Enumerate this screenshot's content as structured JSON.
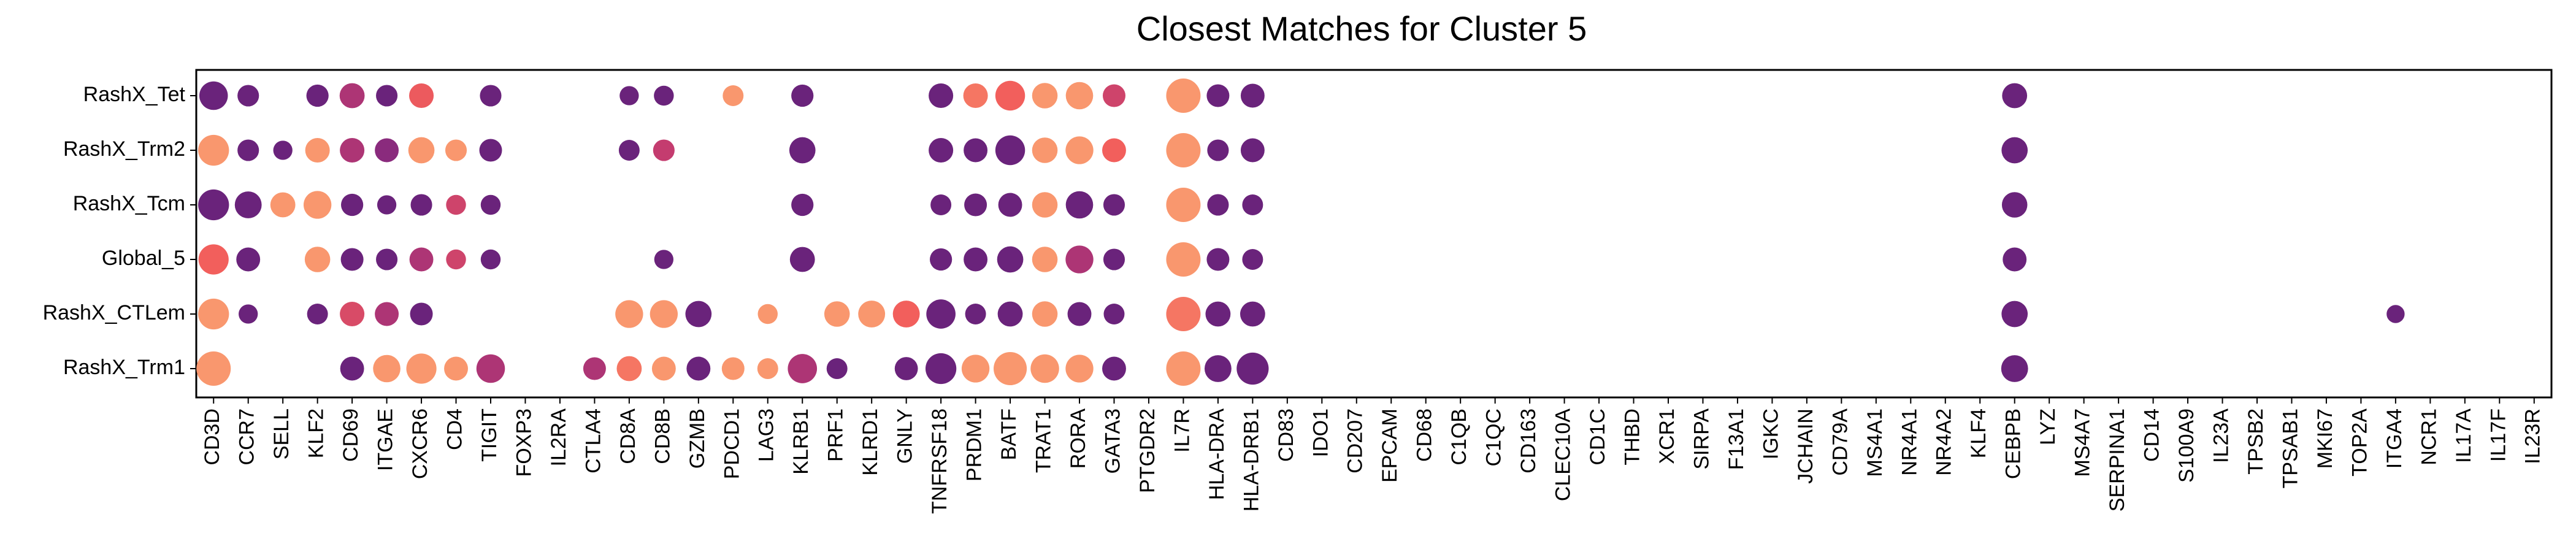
{
  "chart_data": {
    "type": "scatter",
    "title": "Closest Matches for Cluster 5",
    "xlabel": "",
    "ylabel": "",
    "grid": false,
    "colors": {
      "low": "#5a1f7a",
      "mid_low": "#8a2b7d",
      "mid": "#c43c6f",
      "high": "#f25f5c",
      "top": "#fba773"
    },
    "rows": [
      "RashX_Tet",
      "RashX_Trm2",
      "RashX_Tcm",
      "Global_5",
      "RashX_CTLem",
      "RashX_Trm1"
    ],
    "genes": [
      "CD3D",
      "CCR7",
      "SELL",
      "KLF2",
      "CD69",
      "ITGAE",
      "CXCR6",
      "CD4",
      "TIGIT",
      "FOXP3",
      "IL2RA",
      "CTLA4",
      "CD8A",
      "CD8B",
      "GZMB",
      "PDCD1",
      "LAG3",
      "KLRB1",
      "PRF1",
      "KLRD1",
      "GNLY",
      "TNFRSF18",
      "PRDM1",
      "BATF",
      "TRAT1",
      "RORA",
      "GATA3",
      "PTGDR2",
      "IL7R",
      "HLA-DRA",
      "HLA-DRB1",
      "CD83",
      "IDO1",
      "CD207",
      "EPCAM",
      "CD68",
      "C1QB",
      "C1QC",
      "CD163",
      "CLEC10A",
      "CD1C",
      "THBD",
      "XCR1",
      "SIRPA",
      "F13A1",
      "IGKC",
      "JCHAIN",
      "CD79A",
      "MS4A1",
      "NR4A1",
      "NR4A2",
      "KLF4",
      "CEBPB",
      "LYZ",
      "MS4A7",
      "SERPINA1",
      "CD14",
      "S100A9",
      "IL23A",
      "TPSB2",
      "TPSAB1",
      "MKI67",
      "TOP2A",
      "ITGA4",
      "NCR1",
      "IL17A",
      "IL17F",
      "IL23R"
    ],
    "points": [
      {
        "row": "RashX_Tet",
        "gene": "CD3D",
        "size": 0.75,
        "color": 0.1
      },
      {
        "row": "RashX_Tet",
        "gene": "CCR7",
        "size": 0.45,
        "color": 0.1
      },
      {
        "row": "RashX_Tet",
        "gene": "KLF2",
        "size": 0.48,
        "color": 0.1
      },
      {
        "row": "RashX_Tet",
        "gene": "CD69",
        "size": 0.6,
        "color": 0.45
      },
      {
        "row": "RashX_Tet",
        "gene": "ITGAE",
        "size": 0.45,
        "color": 0.1
      },
      {
        "row": "RashX_Tet",
        "gene": "CXCR6",
        "size": 0.58,
        "color": 0.75
      },
      {
        "row": "RashX_Tet",
        "gene": "TIGIT",
        "size": 0.45,
        "color": 0.1
      },
      {
        "row": "RashX_Tet",
        "gene": "CD8A",
        "size": 0.35,
        "color": 0.1
      },
      {
        "row": "RashX_Tet",
        "gene": "CD8B",
        "size": 0.38,
        "color": 0.1
      },
      {
        "row": "RashX_Tet",
        "gene": "PDCD1",
        "size": 0.42,
        "color": 0.95
      },
      {
        "row": "RashX_Tet",
        "gene": "KLRB1",
        "size": 0.48,
        "color": 0.1
      },
      {
        "row": "RashX_Tet",
        "gene": "TNFRSF18",
        "size": 0.58,
        "color": 0.1
      },
      {
        "row": "RashX_Tet",
        "gene": "PRDM1",
        "size": 0.58,
        "color": 0.85
      },
      {
        "row": "RashX_Tet",
        "gene": "BATF",
        "size": 0.8,
        "color": 0.78
      },
      {
        "row": "RashX_Tet",
        "gene": "TRAT1",
        "size": 0.62,
        "color": 0.95
      },
      {
        "row": "RashX_Tet",
        "gene": "RORA",
        "size": 0.7,
        "color": 0.95
      },
      {
        "row": "RashX_Tet",
        "gene": "GATA3",
        "size": 0.5,
        "color": 0.6
      },
      {
        "row": "RashX_Tet",
        "gene": "IL7R",
        "size": 1.0,
        "color": 0.95
      },
      {
        "row": "RashX_Tet",
        "gene": "HLA-DRA",
        "size": 0.5,
        "color": 0.1
      },
      {
        "row": "RashX_Tet",
        "gene": "HLA-DRB1",
        "size": 0.55,
        "color": 0.1
      },
      {
        "row": "RashX_Tet",
        "gene": "CEBPB",
        "size": 0.6,
        "color": 0.1
      },
      {
        "row": "RashX_Trm2",
        "gene": "CD3D",
        "size": 0.85,
        "color": 0.95
      },
      {
        "row": "RashX_Trm2",
        "gene": "CCR7",
        "size": 0.45,
        "color": 0.1
      },
      {
        "row": "RashX_Trm2",
        "gene": "SELL",
        "size": 0.35,
        "color": 0.1
      },
      {
        "row": "RashX_Trm2",
        "gene": "KLF2",
        "size": 0.58,
        "color": 0.95
      },
      {
        "row": "RashX_Trm2",
        "gene": "CD69",
        "size": 0.58,
        "color": 0.45
      },
      {
        "row": "RashX_Trm2",
        "gene": "ITGAE",
        "size": 0.55,
        "color": 0.3
      },
      {
        "row": "RashX_Trm2",
        "gene": "CXCR6",
        "size": 0.65,
        "color": 0.95
      },
      {
        "row": "RashX_Trm2",
        "gene": "CD4",
        "size": 0.45,
        "color": 0.95
      },
      {
        "row": "RashX_Trm2",
        "gene": "TIGIT",
        "size": 0.5,
        "color": 0.1
      },
      {
        "row": "RashX_Trm2",
        "gene": "CD8A",
        "size": 0.42,
        "color": 0.1
      },
      {
        "row": "RashX_Trm2",
        "gene": "CD8B",
        "size": 0.45,
        "color": 0.55
      },
      {
        "row": "RashX_Trm2",
        "gene": "KLRB1",
        "size": 0.65,
        "color": 0.1
      },
      {
        "row": "RashX_Trm2",
        "gene": "TNFRSF18",
        "size": 0.58,
        "color": 0.1
      },
      {
        "row": "RashX_Trm2",
        "gene": "PRDM1",
        "size": 0.55,
        "color": 0.1
      },
      {
        "row": "RashX_Trm2",
        "gene": "BATF",
        "size": 0.8,
        "color": 0.1
      },
      {
        "row": "RashX_Trm2",
        "gene": "TRAT1",
        "size": 0.62,
        "color": 0.95
      },
      {
        "row": "RashX_Trm2",
        "gene": "RORA",
        "size": 0.72,
        "color": 0.95
      },
      {
        "row": "RashX_Trm2",
        "gene": "GATA3",
        "size": 0.55,
        "color": 0.78
      },
      {
        "row": "RashX_Trm2",
        "gene": "IL7R",
        "size": 1.0,
        "color": 0.95
      },
      {
        "row": "RashX_Trm2",
        "gene": "HLA-DRA",
        "size": 0.45,
        "color": 0.1
      },
      {
        "row": "RashX_Trm2",
        "gene": "HLA-DRB1",
        "size": 0.55,
        "color": 0.1
      },
      {
        "row": "RashX_Trm2",
        "gene": "CEBPB",
        "size": 0.65,
        "color": 0.1
      },
      {
        "row": "RashX_Tcm",
        "gene": "CD3D",
        "size": 0.85,
        "color": 0.1
      },
      {
        "row": "RashX_Tcm",
        "gene": "CCR7",
        "size": 0.68,
        "color": 0.1
      },
      {
        "row": "RashX_Tcm",
        "gene": "SELL",
        "size": 0.6,
        "color": 0.95
      },
      {
        "row": "RashX_Tcm",
        "gene": "KLF2",
        "size": 0.72,
        "color": 0.95
      },
      {
        "row": "RashX_Tcm",
        "gene": "CD69",
        "size": 0.48,
        "color": 0.1
      },
      {
        "row": "RashX_Tcm",
        "gene": "ITGAE",
        "size": 0.35,
        "color": 0.1
      },
      {
        "row": "RashX_Tcm",
        "gene": "CXCR6",
        "size": 0.45,
        "color": 0.1
      },
      {
        "row": "RashX_Tcm",
        "gene": "CD4",
        "size": 0.38,
        "color": 0.6
      },
      {
        "row": "RashX_Tcm",
        "gene": "TIGIT",
        "size": 0.38,
        "color": 0.1
      },
      {
        "row": "RashX_Tcm",
        "gene": "KLRB1",
        "size": 0.48,
        "color": 0.1
      },
      {
        "row": "RashX_Tcm",
        "gene": "TNFRSF18",
        "size": 0.42,
        "color": 0.1
      },
      {
        "row": "RashX_Tcm",
        "gene": "PRDM1",
        "size": 0.5,
        "color": 0.1
      },
      {
        "row": "RashX_Tcm",
        "gene": "BATF",
        "size": 0.55,
        "color": 0.1
      },
      {
        "row": "RashX_Tcm",
        "gene": "TRAT1",
        "size": 0.62,
        "color": 0.95
      },
      {
        "row": "RashX_Tcm",
        "gene": "RORA",
        "size": 0.7,
        "color": 0.1
      },
      {
        "row": "RashX_Tcm",
        "gene": "GATA3",
        "size": 0.45,
        "color": 0.1
      },
      {
        "row": "RashX_Tcm",
        "gene": "IL7R",
        "size": 1.0,
        "color": 0.95
      },
      {
        "row": "RashX_Tcm",
        "gene": "HLA-DRA",
        "size": 0.45,
        "color": 0.1
      },
      {
        "row": "RashX_Tcm",
        "gene": "HLA-DRB1",
        "size": 0.42,
        "color": 0.1
      },
      {
        "row": "RashX_Tcm",
        "gene": "CEBPB",
        "size": 0.62,
        "color": 0.1
      },
      {
        "row": "Global_5",
        "gene": "CD3D",
        "size": 0.82,
        "color": 0.78
      },
      {
        "row": "Global_5",
        "gene": "CCR7",
        "size": 0.55,
        "color": 0.1
      },
      {
        "row": "Global_5",
        "gene": "KLF2",
        "size": 0.62,
        "color": 0.95
      },
      {
        "row": "Global_5",
        "gene": "CD69",
        "size": 0.5,
        "color": 0.1
      },
      {
        "row": "Global_5",
        "gene": "ITGAE",
        "size": 0.45,
        "color": 0.1
      },
      {
        "row": "Global_5",
        "gene": "CXCR6",
        "size": 0.55,
        "color": 0.45
      },
      {
        "row": "Global_5",
        "gene": "CD4",
        "size": 0.38,
        "color": 0.6
      },
      {
        "row": "Global_5",
        "gene": "TIGIT",
        "size": 0.38,
        "color": 0.1
      },
      {
        "row": "Global_5",
        "gene": "CD8B",
        "size": 0.35,
        "color": 0.1
      },
      {
        "row": "Global_5",
        "gene": "KLRB1",
        "size": 0.6,
        "color": 0.1
      },
      {
        "row": "Global_5",
        "gene": "TNFRSF18",
        "size": 0.48,
        "color": 0.1
      },
      {
        "row": "Global_5",
        "gene": "PRDM1",
        "size": 0.55,
        "color": 0.1
      },
      {
        "row": "Global_5",
        "gene": "BATF",
        "size": 0.65,
        "color": 0.1
      },
      {
        "row": "Global_5",
        "gene": "TRAT1",
        "size": 0.62,
        "color": 0.95
      },
      {
        "row": "Global_5",
        "gene": "RORA",
        "size": 0.72,
        "color": 0.45
      },
      {
        "row": "Global_5",
        "gene": "GATA3",
        "size": 0.45,
        "color": 0.1
      },
      {
        "row": "Global_5",
        "gene": "IL7R",
        "size": 1.0,
        "color": 0.95
      },
      {
        "row": "Global_5",
        "gene": "HLA-DRA",
        "size": 0.5,
        "color": 0.1
      },
      {
        "row": "Global_5",
        "gene": "HLA-DRB1",
        "size": 0.42,
        "color": 0.1
      },
      {
        "row": "Global_5",
        "gene": "CEBPB",
        "size": 0.55,
        "color": 0.1
      },
      {
        "row": "RashX_CTLem",
        "gene": "CD3D",
        "size": 0.85,
        "color": 0.95
      },
      {
        "row": "RashX_CTLem",
        "gene": "CCR7",
        "size": 0.35,
        "color": 0.1
      },
      {
        "row": "RashX_CTLem",
        "gene": "KLF2",
        "size": 0.42,
        "color": 0.1
      },
      {
        "row": "RashX_CTLem",
        "gene": "CD69",
        "size": 0.58,
        "color": 0.65
      },
      {
        "row": "RashX_CTLem",
        "gene": "ITGAE",
        "size": 0.55,
        "color": 0.45
      },
      {
        "row": "RashX_CTLem",
        "gene": "CXCR6",
        "size": 0.5,
        "color": 0.1
      },
      {
        "row": "RashX_CTLem",
        "gene": "CD8A",
        "size": 0.72,
        "color": 0.95
      },
      {
        "row": "RashX_CTLem",
        "gene": "CD8B",
        "size": 0.72,
        "color": 0.95
      },
      {
        "row": "RashX_CTLem",
        "gene": "GZMB",
        "size": 0.65,
        "color": 0.1
      },
      {
        "row": "RashX_CTLem",
        "gene": "LAG3",
        "size": 0.38,
        "color": 0.95
      },
      {
        "row": "RashX_CTLem",
        "gene": "PRF1",
        "size": 0.62,
        "color": 0.95
      },
      {
        "row": "RashX_CTLem",
        "gene": "KLRD1",
        "size": 0.68,
        "color": 0.95
      },
      {
        "row": "RashX_CTLem",
        "gene": "GNLY",
        "size": 0.68,
        "color": 0.78
      },
      {
        "row": "RashX_CTLem",
        "gene": "TNFRSF18",
        "size": 0.78,
        "color": 0.1
      },
      {
        "row": "RashX_CTLem",
        "gene": "PRDM1",
        "size": 0.42,
        "color": 0.1
      },
      {
        "row": "RashX_CTLem",
        "gene": "BATF",
        "size": 0.6,
        "color": 0.1
      },
      {
        "row": "RashX_CTLem",
        "gene": "TRAT1",
        "size": 0.62,
        "color": 0.95
      },
      {
        "row": "RashX_CTLem",
        "gene": "RORA",
        "size": 0.55,
        "color": 0.1
      },
      {
        "row": "RashX_CTLem",
        "gene": "GATA3",
        "size": 0.42,
        "color": 0.1
      },
      {
        "row": "RashX_CTLem",
        "gene": "IL7R",
        "size": 1.0,
        "color": 0.85
      },
      {
        "row": "RashX_CTLem",
        "gene": "HLA-DRA",
        "size": 0.6,
        "color": 0.1
      },
      {
        "row": "RashX_CTLem",
        "gene": "HLA-DRB1",
        "size": 0.6,
        "color": 0.1
      },
      {
        "row": "RashX_CTLem",
        "gene": "CEBPB",
        "size": 0.65,
        "color": 0.1
      },
      {
        "row": "RashX_CTLem",
        "gene": "ITGA4",
        "size": 0.3,
        "color": 0.1
      },
      {
        "row": "RashX_Trm1",
        "gene": "CD3D",
        "size": 1.0,
        "color": 0.95
      },
      {
        "row": "RashX_Trm1",
        "gene": "CD69",
        "size": 0.55,
        "color": 0.1
      },
      {
        "row": "RashX_Trm1",
        "gene": "ITGAE",
        "size": 0.7,
        "color": 0.95
      },
      {
        "row": "RashX_Trm1",
        "gene": "CXCR6",
        "size": 0.82,
        "color": 0.95
      },
      {
        "row": "RashX_Trm1",
        "gene": "CD4",
        "size": 0.55,
        "color": 0.95
      },
      {
        "row": "RashX_Trm1",
        "gene": "TIGIT",
        "size": 0.75,
        "color": 0.45
      },
      {
        "row": "RashX_Trm1",
        "gene": "CTLA4",
        "size": 0.5,
        "color": 0.45
      },
      {
        "row": "RashX_Trm1",
        "gene": "CD8A",
        "size": 0.6,
        "color": 0.85
      },
      {
        "row": "RashX_Trm1",
        "gene": "CD8B",
        "size": 0.55,
        "color": 0.95
      },
      {
        "row": "RashX_Trm1",
        "gene": "GZMB",
        "size": 0.55,
        "color": 0.1
      },
      {
        "row": "RashX_Trm1",
        "gene": "PDCD1",
        "size": 0.5,
        "color": 0.95
      },
      {
        "row": "RashX_Trm1",
        "gene": "LAG3",
        "size": 0.42,
        "color": 0.95
      },
      {
        "row": "RashX_Trm1",
        "gene": "KLRB1",
        "size": 0.78,
        "color": 0.45
      },
      {
        "row": "RashX_Trm1",
        "gene": "PRF1",
        "size": 0.42,
        "color": 0.1
      },
      {
        "row": "RashX_Trm1",
        "gene": "GNLY",
        "size": 0.52,
        "color": 0.1
      },
      {
        "row": "RashX_Trm1",
        "gene": "TNFRSF18",
        "size": 0.85,
        "color": 0.1
      },
      {
        "row": "RashX_Trm1",
        "gene": "PRDM1",
        "size": 0.72,
        "color": 0.95
      },
      {
        "row": "RashX_Trm1",
        "gene": "BATF",
        "size": 0.95,
        "color": 0.95
      },
      {
        "row": "RashX_Trm1",
        "gene": "TRAT1",
        "size": 0.75,
        "color": 0.95
      },
      {
        "row": "RashX_Trm1",
        "gene": "RORA",
        "size": 0.72,
        "color": 0.95
      },
      {
        "row": "RashX_Trm1",
        "gene": "GATA3",
        "size": 0.55,
        "color": 0.1
      },
      {
        "row": "RashX_Trm1",
        "gene": "IL7R",
        "size": 1.0,
        "color": 0.95
      },
      {
        "row": "RashX_Trm1",
        "gene": "HLA-DRA",
        "size": 0.68,
        "color": 0.1
      },
      {
        "row": "RashX_Trm1",
        "gene": "HLA-DRB1",
        "size": 0.9,
        "color": 0.1
      },
      {
        "row": "RashX_Trm1",
        "gene": "CEBPB",
        "size": 0.68,
        "color": 0.1
      }
    ]
  }
}
